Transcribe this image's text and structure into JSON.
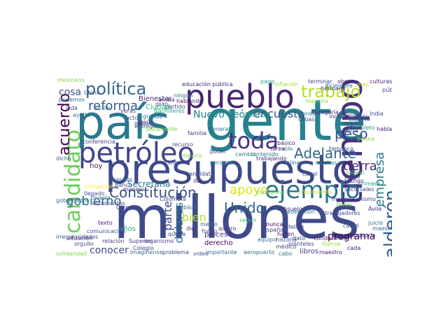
{
  "cloud": {
    "words": [
      {
        "id": "millones",
        "text": "millones",
        "color": "#3e4a89"
      },
      {
        "id": "gente",
        "text": "gente",
        "color": "#26828e"
      },
      {
        "id": "presupuesto",
        "text": "presupuesto",
        "color": "#3e4a89"
      },
      {
        "id": "pais",
        "text": "país",
        "color": "#2a788e"
      },
      {
        "id": "pueblo",
        "text": "pueblo",
        "color": "#482475"
      },
      {
        "id": "tiempo",
        "text": "tiempo",
        "color": "#46327e"
      },
      {
        "id": "petroleo",
        "text": "petróleo",
        "color": "#414487"
      },
      {
        "id": "ejemplo",
        "text": "ejemplo",
        "color": "#2c728e"
      },
      {
        "id": "candidato",
        "text": "candidato",
        "color": "#6ccd5a"
      },
      {
        "id": "toda",
        "text": "toda",
        "color": "#46337f"
      },
      {
        "id": "adelante",
        "text": "Adelante",
        "color": "#33638d"
      },
      {
        "id": "trabajo",
        "text": "trabajo",
        "color": "#b5de2b"
      },
      {
        "id": "calderon",
        "text": "Calderón",
        "color": "#355f8d"
      },
      {
        "id": "politica",
        "text": "política",
        "color": "#31688e"
      },
      {
        "id": "acuerdo",
        "text": "acuerdo",
        "color": "#440154"
      },
      {
        "id": "constitucion",
        "text": "Constitución",
        "color": "#3b528b"
      },
      {
        "id": "gobierno",
        "text": "gobierno",
        "color": "#2d708e"
      },
      {
        "id": "peso",
        "text": "peso",
        "color": "#3b528b"
      },
      {
        "id": "reforma",
        "text": "reforma",
        "color": "#39568c"
      },
      {
        "id": "unido",
        "text": "Unido",
        "color": "#33638d"
      },
      {
        "id": "apoyo",
        "text": "apoyo",
        "color": "#dde318"
      },
      {
        "id": "empresa",
        "text": "empresa",
        "color": "#287c8e"
      },
      {
        "id": "tierra",
        "text": "tierra",
        "color": "#472c7a"
      },
      {
        "id": "encuesta",
        "text": "encuesta",
        "color": "#3b528b"
      },
      {
        "id": "parte",
        "text": "parte",
        "color": "#3f4889"
      },
      {
        "id": "dolares",
        "text": "dólares",
        "color": "#2a788e"
      },
      {
        "id": "bien",
        "text": "bien",
        "color": "#b5de2b"
      },
      {
        "id": "programa",
        "text": "programa",
        "color": "#440154"
      },
      {
        "id": "nuevoleon",
        "text": "Nuevo León",
        "color": "#25848e"
      },
      {
        "id": "cosa",
        "text": "cosa",
        "color": "#3b528b"
      },
      {
        "id": "conocer",
        "text": "conocer",
        "color": "#3e4a89"
      },
      {
        "id": "secretaria",
        "text": "Secretaría",
        "color": "#2c728e"
      },
      {
        "id": "educacion",
        "text": "educación pública",
        "color": "#482475"
      },
      {
        "id": "inflacion",
        "text": "inflación",
        "color": "#9fda3a"
      },
      {
        "id": "hoy",
        "text": "hoy",
        "color": "#481b6d"
      },
      {
        "id": "anos",
        "text": "años",
        "color": "#26ad81"
      },
      {
        "id": "jesus",
        "text": "Jesús",
        "color": "#472d7b"
      },
      {
        "id": "proceso",
        "text": "proceso",
        "color": "#46327e"
      },
      {
        "id": "derecho",
        "text": "derecho",
        "color": "#440154"
      },
      {
        "id": "maestro",
        "text": "maestro",
        "color": "#481a6c"
      },
      {
        "id": "libros",
        "text": "libros",
        "color": "#433e85"
      },
      {
        "id": "cabo",
        "text": "cabo",
        "color": "#2a788e"
      },
      {
        "id": "problema",
        "text": "problema",
        "color": "#3e4989"
      },
      {
        "id": "importante",
        "text": "importante",
        "color": "#2c728e"
      },
      {
        "id": "imaginense",
        "text": "Imagínense",
        "color": "#2d708e"
      },
      {
        "id": "testigo",
        "text": "testigo",
        "color": "#472d7b"
      },
      {
        "id": "mayoria",
        "text": "mayoría",
        "color": "#8bd646"
      },
      {
        "id": "siempre",
        "text": "siempre",
        "color": "#1f9e89"
      },
      {
        "id": "gran",
        "text": "gran",
        "color": "#3f4788"
      },
      {
        "id": "partido",
        "text": "partido",
        "color": "#3e4a89"
      },
      {
        "id": "hablando",
        "text": "hablando",
        "color": "#481f70"
      },
      {
        "id": "mismo",
        "text": "mismo",
        "color": "#3e4989"
      },
      {
        "id": "bienestar",
        "text": "Bienestar",
        "color": "#482576"
      },
      {
        "id": "ciudad",
        "text": "Ciudad",
        "color": "#32b67a"
      },
      {
        "id": "general",
        "text": "general",
        "color": "#2c728e"
      },
      {
        "id": "federacion",
        "text": "Federación",
        "color": "#2d708e"
      },
      {
        "id": "trabajadores",
        "text": "trabajadores",
        "color": "#3e4989"
      },
      {
        "id": "avila",
        "text": "Ávila",
        "color": "#472d7b"
      },
      {
        "id": "pago",
        "text": "pago",
        "color": "#1fa187"
      },
      {
        "id": "terminar",
        "text": "terminar",
        "color": "#3f4889"
      },
      {
        "id": "obra",
        "text": "obra",
        "color": "#481b6d"
      },
      {
        "id": "culturas",
        "text": "culturas",
        "color": "#481a6c"
      },
      {
        "id": "mexicano",
        "text": "mexicano",
        "color": "#84d44b"
      },
      {
        "id": "persona",
        "text": "persona",
        "color": "#277f8e"
      },
      {
        "id": "salinas",
        "text": "Salinas",
        "color": "#355f8d"
      },
      {
        "id": "kilos",
        "text": "kilos",
        "color": "#3e4989"
      },
      {
        "id": "arriba",
        "text": "arriba",
        "color": "#472c7a"
      },
      {
        "id": "buena",
        "text": "buena",
        "color": "#8bd646"
      },
      {
        "id": "sucursales",
        "text": "sucursales",
        "color": "#433e85"
      },
      {
        "id": "crecimiento",
        "text": "crecimiento",
        "color": "#c2df23"
      },
      {
        "id": "mejor",
        "text": "mejor",
        "color": "#46337f"
      },
      {
        "id": "seguro",
        "text": "seguro",
        "color": "#433e85"
      },
      {
        "id": "conferencia",
        "text": "conferencia",
        "color": "#433d84"
      },
      {
        "id": "pasado",
        "text": "pasado",
        "color": "#31688e"
      },
      {
        "id": "canal",
        "text": "canal",
        "color": "#3e4989"
      },
      {
        "id": "queda",
        "text": "queda",
        "color": "#404588"
      },
      {
        "id": "frase1",
        "text": "dio",
        "color": "#482878"
      },
      {
        "id": "dinero",
        "text": "tarea",
        "color": "#481d6f"
      },
      {
        "id": "solo",
        "text": "sólo",
        "color": "#2e6f8e"
      },
      {
        "id": "muchas",
        "text": "muchas",
        "color": "#1e9b8a"
      },
      {
        "id": "salario",
        "text": "salario",
        "color": "#5ec962"
      },
      {
        "id": "cargo",
        "text": "cargo",
        "color": "#3b528b"
      },
      {
        "id": "primera",
        "text": "primera",
        "color": "#22a884"
      },
      {
        "id": "felipe",
        "text": "felipe",
        "color": "#433e85"
      },
      {
        "id": "cartel",
        "text": "cártel",
        "color": "#3e4989"
      },
      {
        "id": "juicio",
        "text": "juicio",
        "color": "#2c728e"
      },
      {
        "id": "texto",
        "text": "texto",
        "color": "#481f70"
      },
      {
        "id": "comunicacion",
        "text": "comunicación",
        "color": "#3b528b"
      },
      {
        "id": "superior",
        "text": "Superior",
        "color": "#433e85"
      },
      {
        "id": "nunca",
        "text": "nunca",
        "color": "#440154"
      },
      {
        "id": "espana",
        "text": "España",
        "color": "#404588"
      },
      {
        "id": "equipo",
        "text": "equipo",
        "color": "#2c728e"
      },
      {
        "id": "menos",
        "text": "menos",
        "color": "#3f4889"
      },
      {
        "id": "miren",
        "text": "miren",
        "color": "#7ad151"
      },
      {
        "id": "fijense",
        "text": "fíjense",
        "color": "#a8db34"
      },
      {
        "id": "aeropuerto",
        "text": "aeropuerto",
        "color": "#2c728e"
      },
      {
        "id": "conflanza",
        "text": "confianza",
        "color": "#6ccd5a"
      },
      {
        "id": "hacen",
        "text": "hacen",
        "color": "#481a6c"
      },
      {
        "id": "dato",
        "text": "dato",
        "color": "#3f4788"
      },
      {
        "id": "historia",
        "text": "historia",
        "color": "#3b528b"
      },
      {
        "id": "contenido",
        "text": "contenido",
        "color": "#2a778e"
      },
      {
        "id": "trabajando",
        "text": "trabajando",
        "color": "#472d7b"
      },
      {
        "id": "familia",
        "text": "familia",
        "color": "#453882"
      },
      {
        "id": "fondo",
        "text": "fondo",
        "color": "#3b528b"
      },
      {
        "id": "publica",
        "text": "publica",
        "color": "#2d708e"
      },
      {
        "id": "medio",
        "text": "medio",
        "color": "#31688e"
      },
      {
        "id": "quiero",
        "text": "quiero",
        "color": "#453781"
      },
      {
        "id": "cambio",
        "text": "cambio",
        "color": "#2a788e"
      },
      {
        "id": "poder",
        "text": "poder",
        "color": "#414487"
      },
      {
        "id": "colombia",
        "text": "Colombia",
        "color": "#3e4a89"
      },
      {
        "id": "camara",
        "text": "Cámara",
        "color": "#3f4889"
      },
      {
        "id": "dar",
        "text": "dar",
        "color": "#472d7b"
      },
      {
        "id": "seguir",
        "text": "seguir",
        "color": "#4ac16d"
      },
      {
        "id": "subsuelo",
        "text": "subsuelo",
        "color": "#443983"
      },
      {
        "id": "candidata",
        "text": "candidata",
        "color": "#3e4a89"
      },
      {
        "id": "hermano",
        "text": "hermano",
        "color": "#472c7a"
      },
      {
        "id": "china",
        "text": "China",
        "color": "#3b528b"
      },
      {
        "id": "sicilia",
        "text": "Sicilia",
        "color": "#2c728e"
      },
      {
        "id": "pension",
        "text": "pensión",
        "color": "#2d708e"
      },
      {
        "id": "completo",
        "text": "completo",
        "color": "#1f968b"
      },
      {
        "id": "experto",
        "text": "experto",
        "color": "#38588c"
      },
      {
        "id": "hablar",
        "text": "hablar",
        "color": "#482677"
      },
      {
        "id": "publico",
        "text": "público",
        "color": "#414487"
      },
      {
        "id": "diciembre",
        "text": "diciembre",
        "color": "#2d718e"
      },
      {
        "id": "categoria",
        "text": "categoría",
        "color": "#482475"
      },
      {
        "id": "ejido",
        "text": "ejido",
        "color": "#39568c"
      },
      {
        "id": "tampoco",
        "text": "tampoco",
        "color": "#3f4889"
      },
      {
        "id": "basico",
        "text": "básico",
        "color": "#482173"
      },
      {
        "id": "nueva",
        "text": "Nueva",
        "color": "#3b528b"
      },
      {
        "id": "gruas",
        "text": "Grúas",
        "color": "#404588"
      },
      {
        "id": "conejo",
        "text": "Conejo",
        "color": "#2c728e"
      },
      {
        "id": "auditoria",
        "text": "Auditoría",
        "color": "#433e85"
      },
      {
        "id": "cada",
        "text": "cada",
        "color": "#481f70"
      },
      {
        "id": "plantales",
        "text": "planteles",
        "color": "#3e4989"
      },
      {
        "id": "condiciones",
        "text": "condiciones",
        "color": "#481a6c"
      },
      {
        "id": "maestra",
        "text": "maestra",
        "color": "#2e6e8e"
      },
      {
        "id": "solidaridad",
        "text": "solidaridad",
        "color": "#7fd34e"
      },
      {
        "id": "irregularidades",
        "text": "irregularidades",
        "color": "#39568c"
      },
      {
        "id": "elementos",
        "text": "gobernador",
        "color": "#2c728e"
      },
      {
        "id": "vida",
        "text": "vida",
        "color": "#433e85"
      },
      {
        "id": "entregar",
        "text": "entregar",
        "color": "#3b528b"
      },
      {
        "id": "ayuda",
        "text": "ayuda",
        "color": "#2d708e"
      },
      {
        "id": "recurso",
        "text": "recurso",
        "color": "#3e4989"
      },
      {
        "id": "medico",
        "text": "médico",
        "color": "#404588"
      },
      {
        "id": "video",
        "text": "video",
        "color": "#39568c"
      },
      {
        "id": "manejo",
        "text": "manejo",
        "color": "#453882"
      },
      {
        "id": "banco",
        "text": "Banco",
        "color": "#3b528b"
      },
      {
        "id": "queria",
        "text": "quería",
        "color": "#2d708e"
      },
      {
        "id": "estudiantes",
        "text": "estudiantes",
        "color": "#433e85"
      },
      {
        "id": "relacion",
        "text": "relación",
        "color": "#3e4989"
      },
      {
        "id": "organismo",
        "text": "organismo",
        "color": "#3f4788"
      },
      {
        "id": "situacion",
        "text": "situación",
        "color": "#481a6c"
      },
      {
        "id": "rapido",
        "text": "justamente",
        "color": "#7ad151"
      },
      {
        "id": "acto",
        "text": "acto",
        "color": "#3b528b"
      },
      {
        "id": "grande",
        "text": "grande",
        "color": "#2e6e8e"
      },
      {
        "id": "bachilleres",
        "text": "Bachilleres",
        "color": "#22a884"
      },
      {
        "id": "veras",
        "text": "veras",
        "color": "#3f4889"
      },
      {
        "id": "ninguno",
        "text": "ningún",
        "color": "#2e6f8e"
      },
      {
        "id": "dicho",
        "text": "dicho",
        "color": "#3b528b"
      },
      {
        "id": "incluso",
        "text": "incluso",
        "color": "#481f70"
      },
      {
        "id": "india",
        "text": "India",
        "color": "#404588"
      },
      {
        "id": "podemos",
        "text": "podemos",
        "color": "#2d708e"
      },
      {
        "id": "todos",
        "text": "mismo",
        "color": "#3e4a89"
      },
      {
        "id": "ficticio",
        "text": "Colegio",
        "color": "#404588"
      },
      {
        "id": "oportunidad",
        "text": "orgullo",
        "color": "#3e4989"
      },
      {
        "id": "mes",
        "text": "mes",
        "color": "#d2e21b"
      },
      {
        "id": "corrupcion",
        "text": "corrupción",
        "color": "#fde725"
      },
      {
        "id": "lleno",
        "text": "llegado",
        "color": "#3b528b"
      },
      {
        "id": "mexico",
        "text": "méxico",
        "color": "#7fd34e"
      }
    ]
  }
}
